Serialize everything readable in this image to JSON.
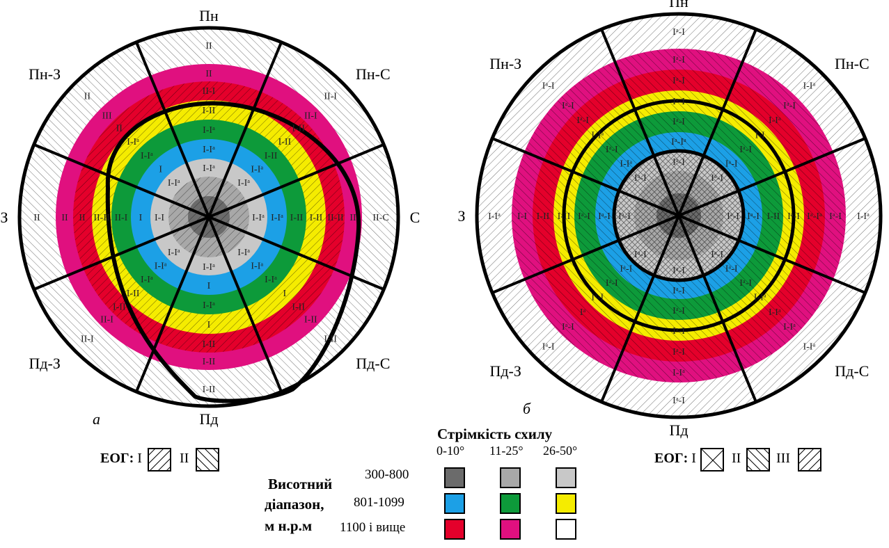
{
  "diagram_a": {
    "caption": "a",
    "directions": {
      "n": "Пн",
      "ne": "Пн-С",
      "e": "С",
      "se": "Пд-С",
      "s": "Пд",
      "sw": "Пд-З",
      "w": "З",
      "nw": "Пн-З"
    },
    "sector_labels": {
      "n": [
        "II",
        "II",
        "II-I",
        "I-II",
        "I-Iᵃ",
        "I-Iᵃ",
        "I-Iᵃ"
      ],
      "ne": [
        "II-I",
        "II-I",
        "I-II",
        "I-II",
        "I-II",
        "I-Iᵃ",
        "I-Iᵃ"
      ],
      "e": [
        "II-C",
        "II",
        "II-II",
        "I-II",
        "I-II",
        "I-Iᵃ",
        "I-Iᵃ"
      ],
      "se": [
        "I-II",
        "I-II",
        "I-II",
        "I",
        "I-Iᵃ",
        "I-Iᵃ",
        "I-Iᵃ"
      ],
      "s": [
        "I-II",
        "I-II",
        "I-II",
        "I",
        "I-Iᵃ",
        "I",
        "I-Iᵃ"
      ],
      "sw": [
        "II-I",
        "II-I",
        "I-II",
        "I-II",
        "I-Iᵃ",
        "I-Iᵃ",
        "I-Iᵃ"
      ],
      "w": [
        "II",
        "II",
        "II",
        "II-II",
        "II-I",
        "I",
        "I-I"
      ],
      "nw": [
        "II",
        "III",
        "II",
        "I-Iᵃ",
        "I-Iᵃ",
        "I",
        "I-Iᵃ"
      ]
    }
  },
  "diagram_b": {
    "caption": "б",
    "directions": {
      "n": "Пн",
      "ne": "Пн-С",
      "e": "С",
      "se": "Пд-С",
      "s": "Пд",
      "sw": "Пд-З",
      "w": "З",
      "nw": "Пн-З"
    },
    "sector_labels": {
      "n": [
        "Iᵃ-I",
        "Iᵃ-I",
        "Iᵃ-I",
        "Iᵃ-I",
        "Iᵃ-I",
        "Iᵃ-Iᵃ",
        "Iᵃ-I"
      ],
      "ne": [
        "I-Iᵃ",
        "Iᵃ-I",
        "I-Iᵃ",
        "I-I",
        "Iᵃ-I",
        "Iᵃ-I",
        "Iᵃ-I"
      ],
      "e": [
        "I-Iᵃ",
        "Iᵃ-I",
        "Iᵃ-Iᵃ",
        "Iᵃ-I",
        "I-II",
        "Iᵃ-I",
        "Iᵃ-I"
      ],
      "se": [
        "I-Iᵃ",
        "I-Iᵃ",
        "I-Iᵃ",
        "I-Iᵃ",
        "Iᵃ-I",
        "Iᵃ-I",
        "Iᵃ-I"
      ],
      "s": [
        "Iᵃ-I",
        "I-Iᵃ",
        "Iᵃ-I",
        "Iᵃ-I",
        "Iᵃ-I",
        "Iᵃ-I",
        "Iᵃ-I"
      ],
      "sw": [
        "Iᵃ-I",
        "Iᵃ-I",
        "Iᵃ",
        "Iᵃ-I",
        "Iᵃ-I",
        "Iᵃ-I",
        "Iᵃ-I"
      ],
      "w": [
        "I-Iᵃ",
        "I-I",
        "I-II",
        "I-II",
        "Iᵃ-I",
        "Iᵃ-I",
        "Iᵃ-I"
      ],
      "nw": [
        "Iᵃ-I",
        "Iᵃ-I",
        "Iᵃ-I",
        "I-Iᵃ",
        "Iᵃ-I",
        "I-Iᵃ",
        "Iᵃ-I"
      ]
    }
  },
  "legend": {
    "eog_label": "ЕОГ:",
    "eog_a": [
      "I",
      "II"
    ],
    "eog_b": [
      "I",
      "II",
      "III"
    ],
    "title_slope": "Стрімкість схилу",
    "slope_headers": [
      "0-10°",
      "11-25°",
      "26-50°"
    ],
    "title_altitude_lines": [
      "Висотний",
      "діапазон,",
      "м н.р.м"
    ],
    "altitude_ranges": [
      "300-800",
      "801-1099",
      "1100 і вище"
    ],
    "colors": {
      "r0": [
        "#6b6b6b",
        "#a8a8a8",
        "#c8c8c8"
      ],
      "r1": [
        "#1ca0e6",
        "#0d9a3a",
        "#f5ec00"
      ],
      "r2": [
        "#e4002b",
        "#e0107f",
        "#ffffff"
      ]
    }
  }
}
